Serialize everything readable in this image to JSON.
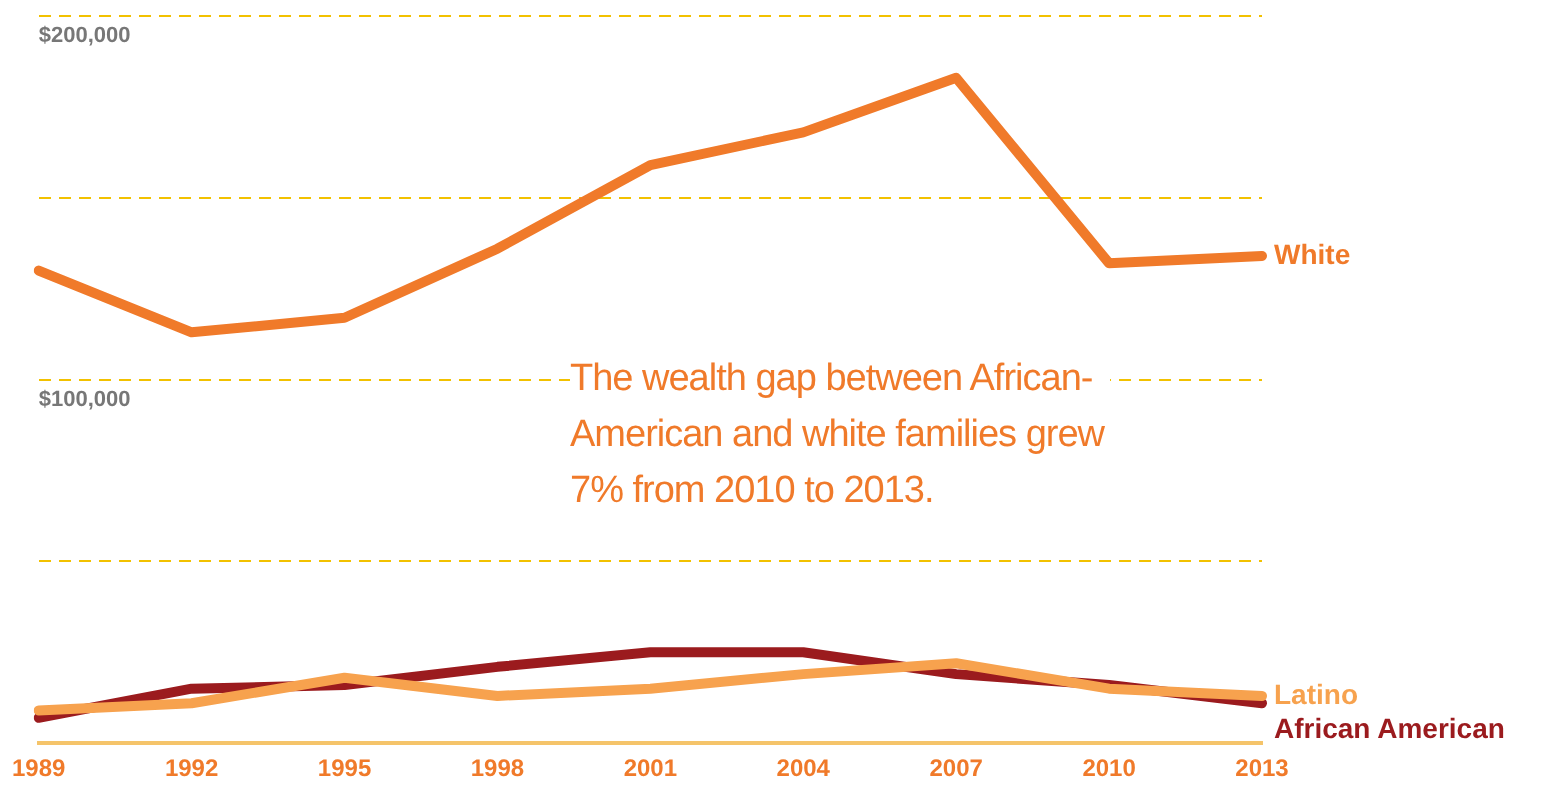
{
  "chart_data": {
    "type": "line",
    "categories": [
      "1989",
      "1992",
      "1995",
      "1998",
      "2001",
      "2004",
      "2007",
      "2010",
      "2013"
    ],
    "series": [
      {
        "name": "White",
        "color": "#f07a2a",
        "values": [
          130000,
          113000,
          117000,
          136000,
          159000,
          168000,
          183000,
          132000,
          134000
        ]
      },
      {
        "name": "Latino",
        "color": "#f7a24e",
        "values": [
          9000,
          11000,
          18000,
          13000,
          15000,
          19000,
          22000,
          15000,
          13000
        ]
      },
      {
        "name": "African American",
        "color": "#9b1b1e",
        "values": [
          7000,
          15000,
          16000,
          21000,
          25000,
          25000,
          19000,
          16000,
          11000
        ]
      }
    ],
    "ylim": [
      0,
      200000
    ],
    "yticks": [
      {
        "value": 50000,
        "label": null
      },
      {
        "value": 100000,
        "label": "$100,000"
      },
      {
        "value": 150000,
        "label": null
      },
      {
        "value": 200000,
        "label": "$200,000"
      }
    ],
    "grid": "y",
    "line_style": "solid",
    "marker": "none",
    "annotations": [
      "The wealth gap between African-American and white families grew 7% from 2010 to 2013."
    ]
  }
}
